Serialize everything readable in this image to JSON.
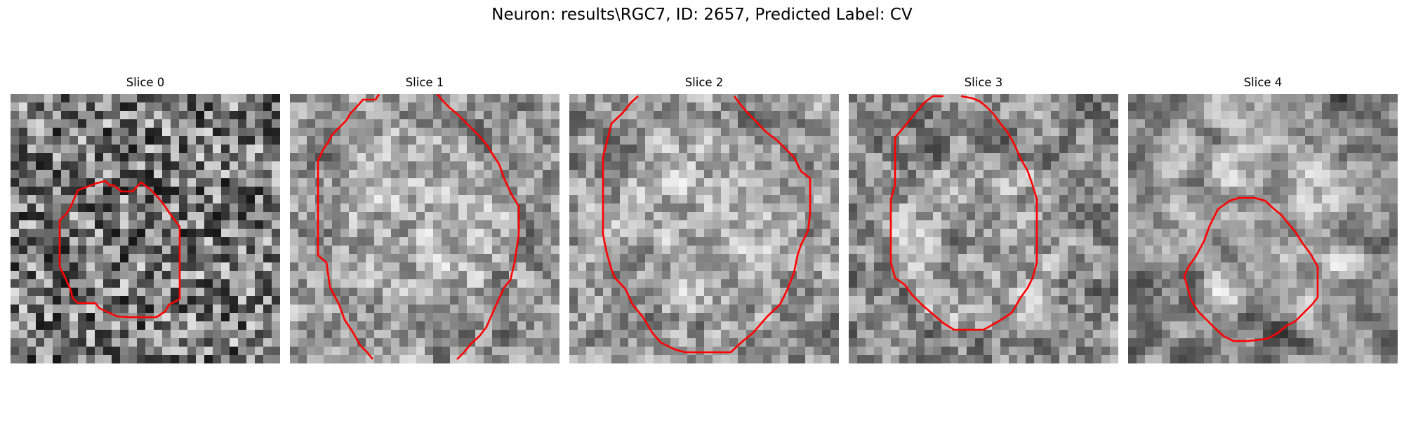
{
  "figure": {
    "title": "Neuron: results\\RGC7, ID: 2657, Predicted Label: CV",
    "panels": [
      {
        "title": "Slice 0",
        "seed": 11,
        "texture": "fine",
        "center": [
          0.5,
          0.5
        ],
        "brightness": 0.48
      },
      {
        "title": "Slice 1",
        "seed": 23,
        "texture": "bright",
        "center": [
          0.5,
          0.45
        ],
        "brightness": 0.62
      },
      {
        "title": "Slice 2",
        "seed": 37,
        "texture": "bright",
        "center": [
          0.5,
          0.5
        ],
        "brightness": 0.62
      },
      {
        "title": "Slice 3",
        "seed": 53,
        "texture": "mid",
        "center": [
          0.5,
          0.55
        ],
        "brightness": 0.58
      },
      {
        "title": "Slice 4",
        "seed": 71,
        "texture": "smooth",
        "center": [
          0.55,
          0.5
        ],
        "brightness": 0.6
      }
    ]
  },
  "colors": {
    "contour": "#ff0000"
  },
  "image_size": 32
}
